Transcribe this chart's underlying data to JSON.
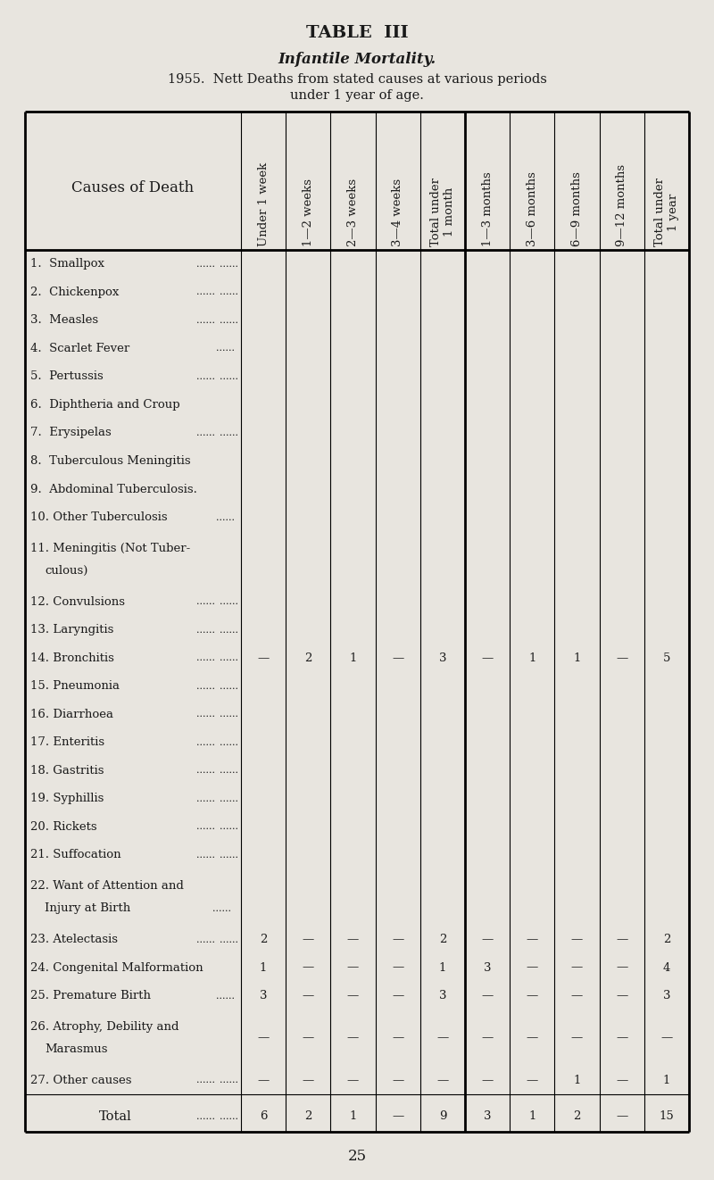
{
  "title": "TABLE  III",
  "subtitle": "Infantile Mortality.",
  "description_line1": "1955.  Nett Deaths from stated causes at various periods",
  "description_line2": "under 1 year of age.",
  "col_headers": [
    "Under 1 week",
    "1—2 weeks",
    "2—3 weeks",
    "3—4 weeks",
    "Total under\n1 month",
    "1—3 months",
    "3—6 months",
    "6—9 months",
    "9—12 months",
    "Total under\n1 year"
  ],
  "row_labels_line1": [
    "1.  Smallpox",
    "2.  Chickenpox",
    "3.  Measles",
    "4.  Scarlet Fever",
    "5.  Pertussis",
    "6.  Diphtheria and Croup",
    "7.  Erysipelas",
    "8.  Tuberculous Meningitis",
    "9.  Abdominal Tuberculosis.",
    "10. Other Tuberculosis",
    "11. Meningitis (Not Tuber-",
    "12. Convulsions",
    "13. Laryngitis",
    "14. Bronchitis",
    "15. Pneumonia",
    "16. Diarrhoea",
    "17. Enteritis",
    "18. Gastritis",
    "19. Syphillis",
    "20. Rickets",
    "21. Suffocation",
    "22. Want of Attention and",
    "23. Atelectasis",
    "24. Congenital Malformation",
    "25. Premature Birth",
    "26. Atrophy, Debility and",
    "27. Other causes"
  ],
  "row_labels_line2": [
    "",
    "",
    "",
    "",
    "",
    "",
    "",
    "",
    "",
    "",
    "    culous)",
    "",
    "",
    "",
    "",
    "",
    "",
    "",
    "",
    "",
    "",
    "    Injury at Birth",
    "",
    "",
    "",
    "    Marasmus",
    ""
  ],
  "row_has_dots": [
    true,
    true,
    true,
    true,
    true,
    false,
    true,
    false,
    false,
    true,
    true,
    true,
    true,
    true,
    true,
    true,
    true,
    true,
    true,
    true,
    true,
    false,
    true,
    false,
    true,
    false,
    true
  ],
  "row_dots_style": [
    "double",
    "double",
    "double",
    "single",
    "double",
    "none",
    "double",
    "none",
    "none",
    "single",
    "double",
    "double",
    "double",
    "double",
    "double",
    "double",
    "double",
    "double",
    "double",
    "double",
    "double",
    "single",
    "double",
    "none",
    "single",
    "none",
    "double"
  ],
  "data": [
    [
      "",
      "",
      "",
      "",
      "",
      "",
      "",
      "",
      "",
      ""
    ],
    [
      "",
      "",
      "",
      "",
      "",
      "",
      "",
      "",
      "",
      ""
    ],
    [
      "",
      "",
      "",
      "",
      "",
      "",
      "",
      "",
      "",
      ""
    ],
    [
      "",
      "",
      "",
      "",
      "",
      "",
      "",
      "",
      "",
      ""
    ],
    [
      "",
      "",
      "",
      "",
      "",
      "",
      "",
      "",
      "",
      ""
    ],
    [
      "",
      "",
      "",
      "",
      "",
      "",
      "",
      "",
      "",
      ""
    ],
    [
      "",
      "",
      "",
      "",
      "",
      "",
      "",
      "",
      "",
      ""
    ],
    [
      "",
      "",
      "",
      "",
      "",
      "",
      "",
      "",
      "",
      ""
    ],
    [
      "",
      "",
      "",
      "",
      "",
      "",
      "",
      "",
      "",
      ""
    ],
    [
      "",
      "",
      "",
      "",
      "",
      "",
      "",
      "",
      "",
      ""
    ],
    [
      "",
      "",
      "",
      "",
      "",
      "",
      "",
      "",
      "",
      ""
    ],
    [
      "",
      "",
      "",
      "",
      "",
      "",
      "",
      "",
      "",
      ""
    ],
    [
      "",
      "",
      "",
      "",
      "",
      "",
      "",
      "",
      "",
      ""
    ],
    [
      "—",
      "2",
      "1",
      "—",
      "3",
      "—",
      "1",
      "1",
      "—",
      "5"
    ],
    [
      "",
      "",
      "",
      "",
      "",
      "",
      "",
      "",
      "",
      ""
    ],
    [
      "",
      "",
      "",
      "",
      "",
      "",
      "",
      "",
      "",
      ""
    ],
    [
      "",
      "",
      "",
      "",
      "",
      "",
      "",
      "",
      "",
      ""
    ],
    [
      "",
      "",
      "",
      "",
      "",
      "",
      "",
      "",
      "",
      ""
    ],
    [
      "",
      "",
      "",
      "",
      "",
      "",
      "",
      "",
      "",
      ""
    ],
    [
      "",
      "",
      "",
      "",
      "",
      "",
      "",
      "",
      "",
      ""
    ],
    [
      "",
      "",
      "",
      "",
      "",
      "",
      "",
      "",
      "",
      ""
    ],
    [
      "",
      "",
      "",
      "",
      "",
      "",
      "",
      "",
      "",
      ""
    ],
    [
      "2",
      "—",
      "—",
      "—",
      "2",
      "—",
      "—",
      "—",
      "—",
      "2"
    ],
    [
      "1",
      "—",
      "—",
      "—",
      "1",
      "3",
      "—",
      "—",
      "—",
      "4"
    ],
    [
      "3",
      "—",
      "—",
      "—",
      "3",
      "—",
      "—",
      "—",
      "—",
      "3"
    ],
    [
      "—",
      "—",
      "—",
      "—",
      "—",
      "—",
      "—",
      "—",
      "—",
      "—"
    ],
    [
      "—",
      "—",
      "—",
      "—",
      "—",
      "—",
      "—",
      "1",
      "—",
      "1"
    ]
  ],
  "total_row": [
    "6",
    "2",
    "1",
    "—",
    "9",
    "3",
    "1",
    "2",
    "—",
    "15"
  ],
  "page_number": "25",
  "bg_color": "#e8e5df",
  "text_color": "#1a1a1a",
  "font_size": 9.5,
  "header_font_size": 9.5
}
